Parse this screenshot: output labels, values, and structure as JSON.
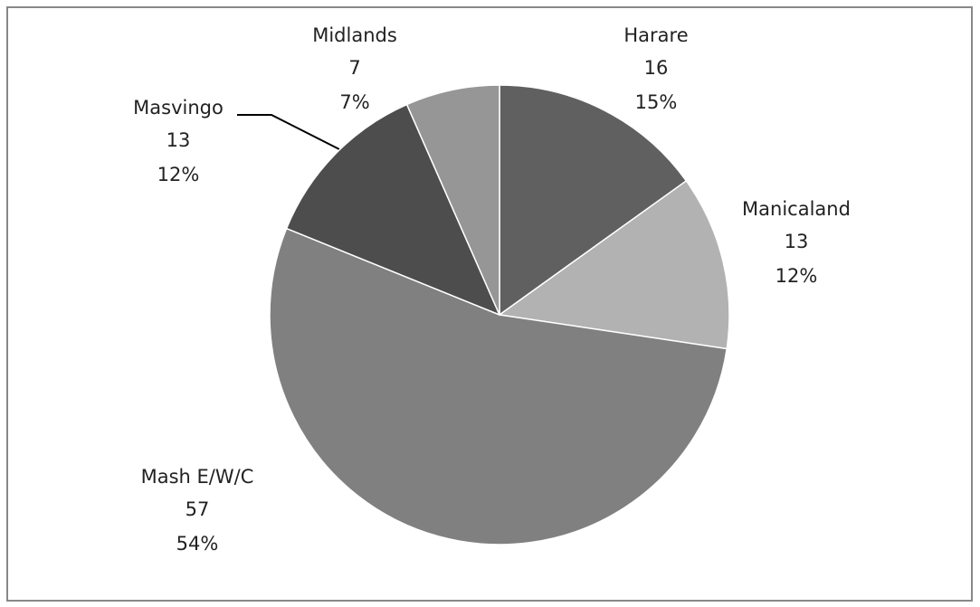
{
  "chart_data": {
    "type": "pie",
    "categories": [
      "Harare",
      "Manicaland",
      "Mash E/W/C",
      "Masvingo",
      "Midlands"
    ],
    "values": [
      16,
      13,
      57,
      13,
      7
    ],
    "percent_labels": [
      "15%",
      "12%",
      "54%",
      "12%",
      "7%"
    ],
    "colors": [
      "#606060",
      "#b2b2b2",
      "#808080",
      "#4d4d4d",
      "#969696"
    ]
  }
}
